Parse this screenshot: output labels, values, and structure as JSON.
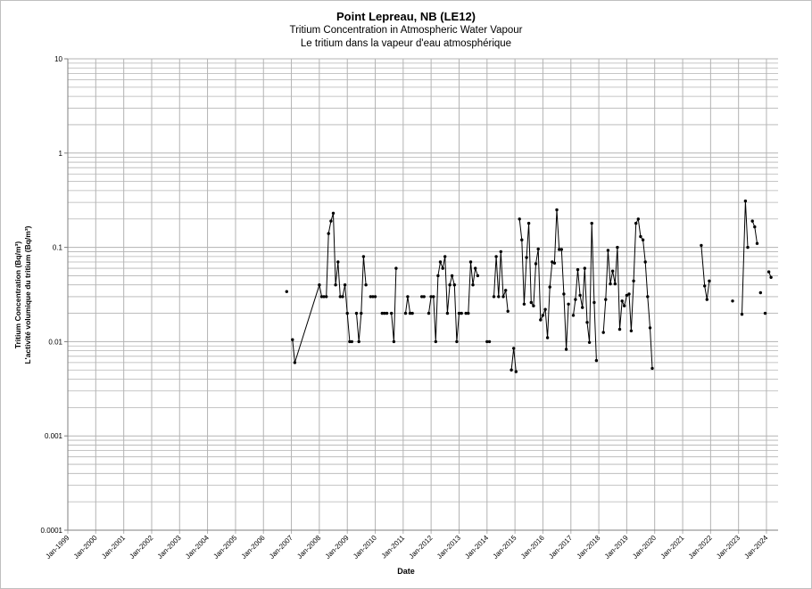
{
  "chart_data": {
    "type": "scatter",
    "title": "Point Lepreau, NB (LE12)",
    "subtitle": "Tritium Concentration in Atmospheric Water Vapour",
    "subtitle_fr": "Le tritium dans la vapeur d'eau atmosphérique",
    "xlabel": "Date",
    "ylabel": "Tritium Concentration (Bq/m³)",
    "ylabel_fr": "L'activité volumique du tritium (Bq/m³)",
    "y_scale": "log",
    "ylim": [
      0.0001,
      10
    ],
    "y_ticks": [
      "10",
      "1",
      "0.1",
      "0.01",
      "0.001",
      "0.0001"
    ],
    "xlim": [
      "1999-01-01",
      "2024-06-01"
    ],
    "x_ticks": [
      "Jan-1999",
      "Jan-2000",
      "Jan-2001",
      "Jan-2002",
      "Jan-2003",
      "Jan-2004",
      "Jan-2005",
      "Jan-2006",
      "Jan-2007",
      "Jan-2008",
      "Jan-2009",
      "Jan-2010",
      "Jan-2011",
      "Jan-2012",
      "Jan-2013",
      "Jan-2014",
      "Jan-2015",
      "Jan-2016",
      "Jan-2017",
      "Jan-2018",
      "Jan-2019",
      "Jan-2020",
      "Jan-2021",
      "Jan-2022",
      "Jan-2023",
      "Jan-2024"
    ],
    "grid": true,
    "legend": "none",
    "colors": {
      "line": "#000000",
      "marker": "#000000",
      "grid": "#b3b3b3",
      "axis": "#7f7f7f"
    },
    "series": [
      {
        "points": [
          [
            "2006-11-01",
            0.034
          ]
        ]
      },
      {
        "points": [
          [
            "2007-01-15",
            0.0105
          ],
          [
            "2007-02-15",
            0.006
          ],
          [
            "2008-01-01",
            0.04
          ],
          [
            "2008-02-01",
            0.03
          ],
          [
            "2008-03-01",
            0.03
          ],
          [
            "2008-04-01",
            0.03
          ],
          [
            "2008-05-01",
            0.14
          ],
          [
            "2008-06-01",
            0.19
          ],
          [
            "2008-07-01",
            0.23
          ],
          [
            "2008-08-01",
            0.04
          ],
          [
            "2008-09-01",
            0.07
          ],
          [
            "2008-10-01",
            0.03
          ],
          [
            "2008-11-01",
            0.03
          ],
          [
            "2008-12-01",
            0.04
          ],
          [
            "2009-01-01",
            0.02
          ],
          [
            "2009-02-01",
            0.01
          ],
          [
            "2009-03-01",
            0.01
          ]
        ]
      },
      {
        "points": [
          [
            "2009-05-01",
            0.02
          ],
          [
            "2009-06-01",
            0.01
          ],
          [
            "2009-07-01",
            0.02
          ],
          [
            "2009-08-01",
            0.08
          ],
          [
            "2009-09-01",
            0.04
          ]
        ]
      },
      {
        "points": [
          [
            "2009-11-01",
            0.03
          ],
          [
            "2009-12-01",
            0.03
          ],
          [
            "2010-01-01",
            0.03
          ]
        ]
      },
      {
        "points": [
          [
            "2010-04-01",
            0.02
          ],
          [
            "2010-05-01",
            0.02
          ],
          [
            "2010-06-01",
            0.02
          ]
        ]
      },
      {
        "points": [
          [
            "2010-08-01",
            0.02
          ],
          [
            "2010-09-01",
            0.01
          ],
          [
            "2010-10-01",
            0.06
          ]
        ]
      },
      {
        "points": [
          [
            "2011-02-01",
            0.02
          ],
          [
            "2011-03-01",
            0.03
          ],
          [
            "2011-04-01",
            0.02
          ],
          [
            "2011-05-01",
            0.02
          ]
        ]
      },
      {
        "points": [
          [
            "2011-09-01",
            0.03
          ],
          [
            "2011-10-01",
            0.03
          ]
        ]
      },
      {
        "points": [
          [
            "2011-12-01",
            0.02
          ],
          [
            "2012-01-01",
            0.03
          ],
          [
            "2012-02-01",
            0.03
          ],
          [
            "2012-03-01",
            0.01
          ],
          [
            "2012-04-01",
            0.05
          ],
          [
            "2012-05-01",
            0.07
          ],
          [
            "2012-06-01",
            0.06
          ],
          [
            "2012-07-01",
            0.08
          ],
          [
            "2012-08-01",
            0.02
          ],
          [
            "2012-09-01",
            0.04
          ],
          [
            "2012-10-01",
            0.05
          ],
          [
            "2012-11-01",
            0.04
          ],
          [
            "2012-12-01",
            0.01
          ],
          [
            "2013-01-01",
            0.02
          ],
          [
            "2013-02-01",
            0.02
          ]
        ]
      },
      {
        "points": [
          [
            "2013-04-01",
            0.02
          ],
          [
            "2013-05-01",
            0.02
          ],
          [
            "2013-06-01",
            0.07
          ],
          [
            "2013-07-01",
            0.04
          ],
          [
            "2013-08-01",
            0.06
          ],
          [
            "2013-09-01",
            0.05
          ]
        ]
      },
      {
        "points": [
          [
            "2014-01-01",
            0.01
          ],
          [
            "2014-02-01",
            0.01
          ]
        ]
      },
      {
        "points": [
          [
            "2014-04-01",
            0.03
          ],
          [
            "2014-05-01",
            0.08
          ],
          [
            "2014-06-01",
            0.03
          ],
          [
            "2014-07-01",
            0.09
          ],
          [
            "2014-08-01",
            0.03
          ],
          [
            "2014-09-01",
            0.035
          ],
          [
            "2014-10-01",
            0.021
          ]
        ]
      },
      {
        "points": [
          [
            "2014-11-15",
            0.005
          ],
          [
            "2014-12-15",
            0.0085
          ],
          [
            "2015-01-15",
            0.0048
          ]
        ]
      },
      {
        "points": [
          [
            "2015-03-01",
            0.2
          ],
          [
            "2015-04-01",
            0.12
          ],
          [
            "2015-05-01",
            0.025
          ],
          [
            "2015-06-01",
            0.078
          ],
          [
            "2015-07-01",
            0.18
          ],
          [
            "2015-08-01",
            0.026
          ],
          [
            "2015-09-01",
            0.024
          ],
          [
            "2015-10-01",
            0.067
          ],
          [
            "2015-11-01",
            0.096
          ],
          [
            "2015-12-01",
            0.017
          ],
          [
            "2016-01-01",
            0.019
          ],
          [
            "2016-02-01",
            0.022
          ],
          [
            "2016-03-01",
            0.011
          ],
          [
            "2016-04-01",
            0.038
          ],
          [
            "2016-05-01",
            0.07
          ],
          [
            "2016-06-01",
            0.068
          ],
          [
            "2016-07-01",
            0.25
          ],
          [
            "2016-08-01",
            0.095
          ],
          [
            "2016-09-01",
            0.095
          ],
          [
            "2016-10-01",
            0.032
          ],
          [
            "2016-11-01",
            0.0083
          ],
          [
            "2016-12-01",
            0.025
          ]
        ]
      },
      {
        "points": [
          [
            "2017-02-01",
            0.019
          ],
          [
            "2017-03-01",
            0.028
          ],
          [
            "2017-04-01",
            0.058
          ],
          [
            "2017-05-01",
            0.031
          ],
          [
            "2017-06-01",
            0.023
          ],
          [
            "2017-07-01",
            0.06
          ],
          [
            "2017-08-01",
            0.016
          ],
          [
            "2017-09-01",
            0.0098
          ],
          [
            "2017-10-01",
            0.18
          ],
          [
            "2017-11-01",
            0.026
          ],
          [
            "2017-12-01",
            0.0063
          ]
        ]
      },
      {
        "points": [
          [
            "2018-03-01",
            0.0125
          ],
          [
            "2018-04-01",
            0.028
          ],
          [
            "2018-05-01",
            0.093
          ],
          [
            "2018-06-01",
            0.041
          ],
          [
            "2018-07-01",
            0.056
          ],
          [
            "2018-08-01",
            0.041
          ],
          [
            "2018-09-01",
            0.1
          ],
          [
            "2018-10-01",
            0.0135
          ],
          [
            "2018-11-01",
            0.027
          ],
          [
            "2018-12-01",
            0.024
          ],
          [
            "2019-01-01",
            0.031
          ],
          [
            "2019-02-01",
            0.032
          ],
          [
            "2019-03-01",
            0.013
          ],
          [
            "2019-04-01",
            0.044
          ],
          [
            "2019-05-01",
            0.18
          ],
          [
            "2019-06-01",
            0.2
          ],
          [
            "2019-07-01",
            0.13
          ],
          [
            "2019-08-01",
            0.12
          ],
          [
            "2019-09-01",
            0.07
          ],
          [
            "2019-10-01",
            0.03
          ],
          [
            "2019-11-01",
            0.014
          ],
          [
            "2019-12-01",
            0.0052
          ]
        ]
      },
      {
        "points": [
          [
            "2021-09-01",
            0.105
          ],
          [
            "2021-10-15",
            0.039
          ],
          [
            "2021-11-15",
            0.028
          ],
          [
            "2021-12-15",
            0.044
          ]
        ]
      },
      {
        "points": [
          [
            "2022-10-15",
            0.027
          ]
        ]
      },
      {
        "points": [
          [
            "2023-02-15",
            0.0195
          ],
          [
            "2023-04-01",
            0.31
          ],
          [
            "2023-05-01",
            0.1
          ]
        ]
      },
      {
        "points": [
          [
            "2023-07-01",
            0.19
          ],
          [
            "2023-08-01",
            0.165
          ],
          [
            "2023-09-01",
            0.11
          ]
        ]
      },
      {
        "points": [
          [
            "2023-10-15",
            0.033
          ]
        ]
      },
      {
        "points": [
          [
            "2023-12-15",
            0.02
          ]
        ]
      },
      {
        "points": [
          [
            "2024-02-01",
            0.055
          ],
          [
            "2024-03-01",
            0.048
          ]
        ]
      }
    ]
  }
}
